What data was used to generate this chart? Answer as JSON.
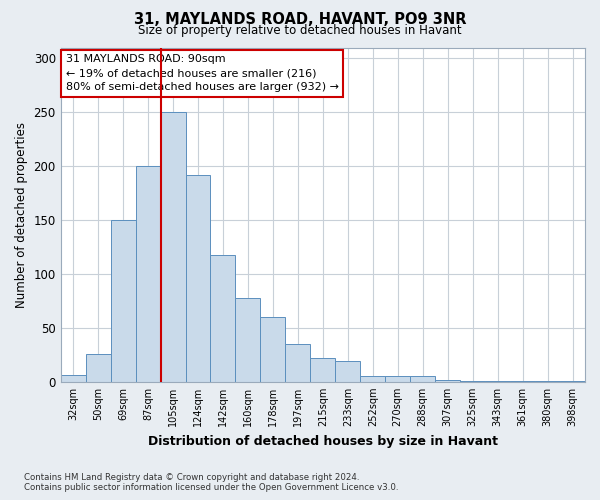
{
  "title": "31, MAYLANDS ROAD, HAVANT, PO9 3NR",
  "subtitle": "Size of property relative to detached houses in Havant",
  "xlabel": "Distribution of detached houses by size in Havant",
  "ylabel": "Number of detached properties",
  "bar_labels": [
    "32sqm",
    "50sqm",
    "69sqm",
    "87sqm",
    "105sqm",
    "124sqm",
    "142sqm",
    "160sqm",
    "178sqm",
    "197sqm",
    "215sqm",
    "233sqm",
    "252sqm",
    "270sqm",
    "288sqm",
    "307sqm",
    "325sqm",
    "343sqm",
    "361sqm",
    "380sqm",
    "398sqm"
  ],
  "bar_heights": [
    6,
    26,
    150,
    200,
    250,
    192,
    118,
    78,
    60,
    35,
    22,
    19,
    5,
    5,
    5,
    2,
    1,
    1,
    1,
    1,
    1
  ],
  "bar_color": "#c9daea",
  "bar_edge_color": "#5b8fbe",
  "vline_color": "#cc0000",
  "annotation_lines": [
    "31 MAYLANDS ROAD: 90sqm",
    "← 19% of detached houses are smaller (216)",
    "80% of semi-detached houses are larger (932) →"
  ],
  "annotation_box_color": "#ffffff",
  "annotation_box_edge_color": "#cc0000",
  "ylim": [
    0,
    310
  ],
  "yticks": [
    0,
    50,
    100,
    150,
    200,
    250,
    300
  ],
  "footer_line1": "Contains HM Land Registry data © Crown copyright and database right 2024.",
  "footer_line2": "Contains public sector information licensed under the Open Government Licence v3.0.",
  "bg_color": "#e8edf2",
  "plot_bg_color": "#ffffff",
  "grid_color": "#c8d0d8"
}
